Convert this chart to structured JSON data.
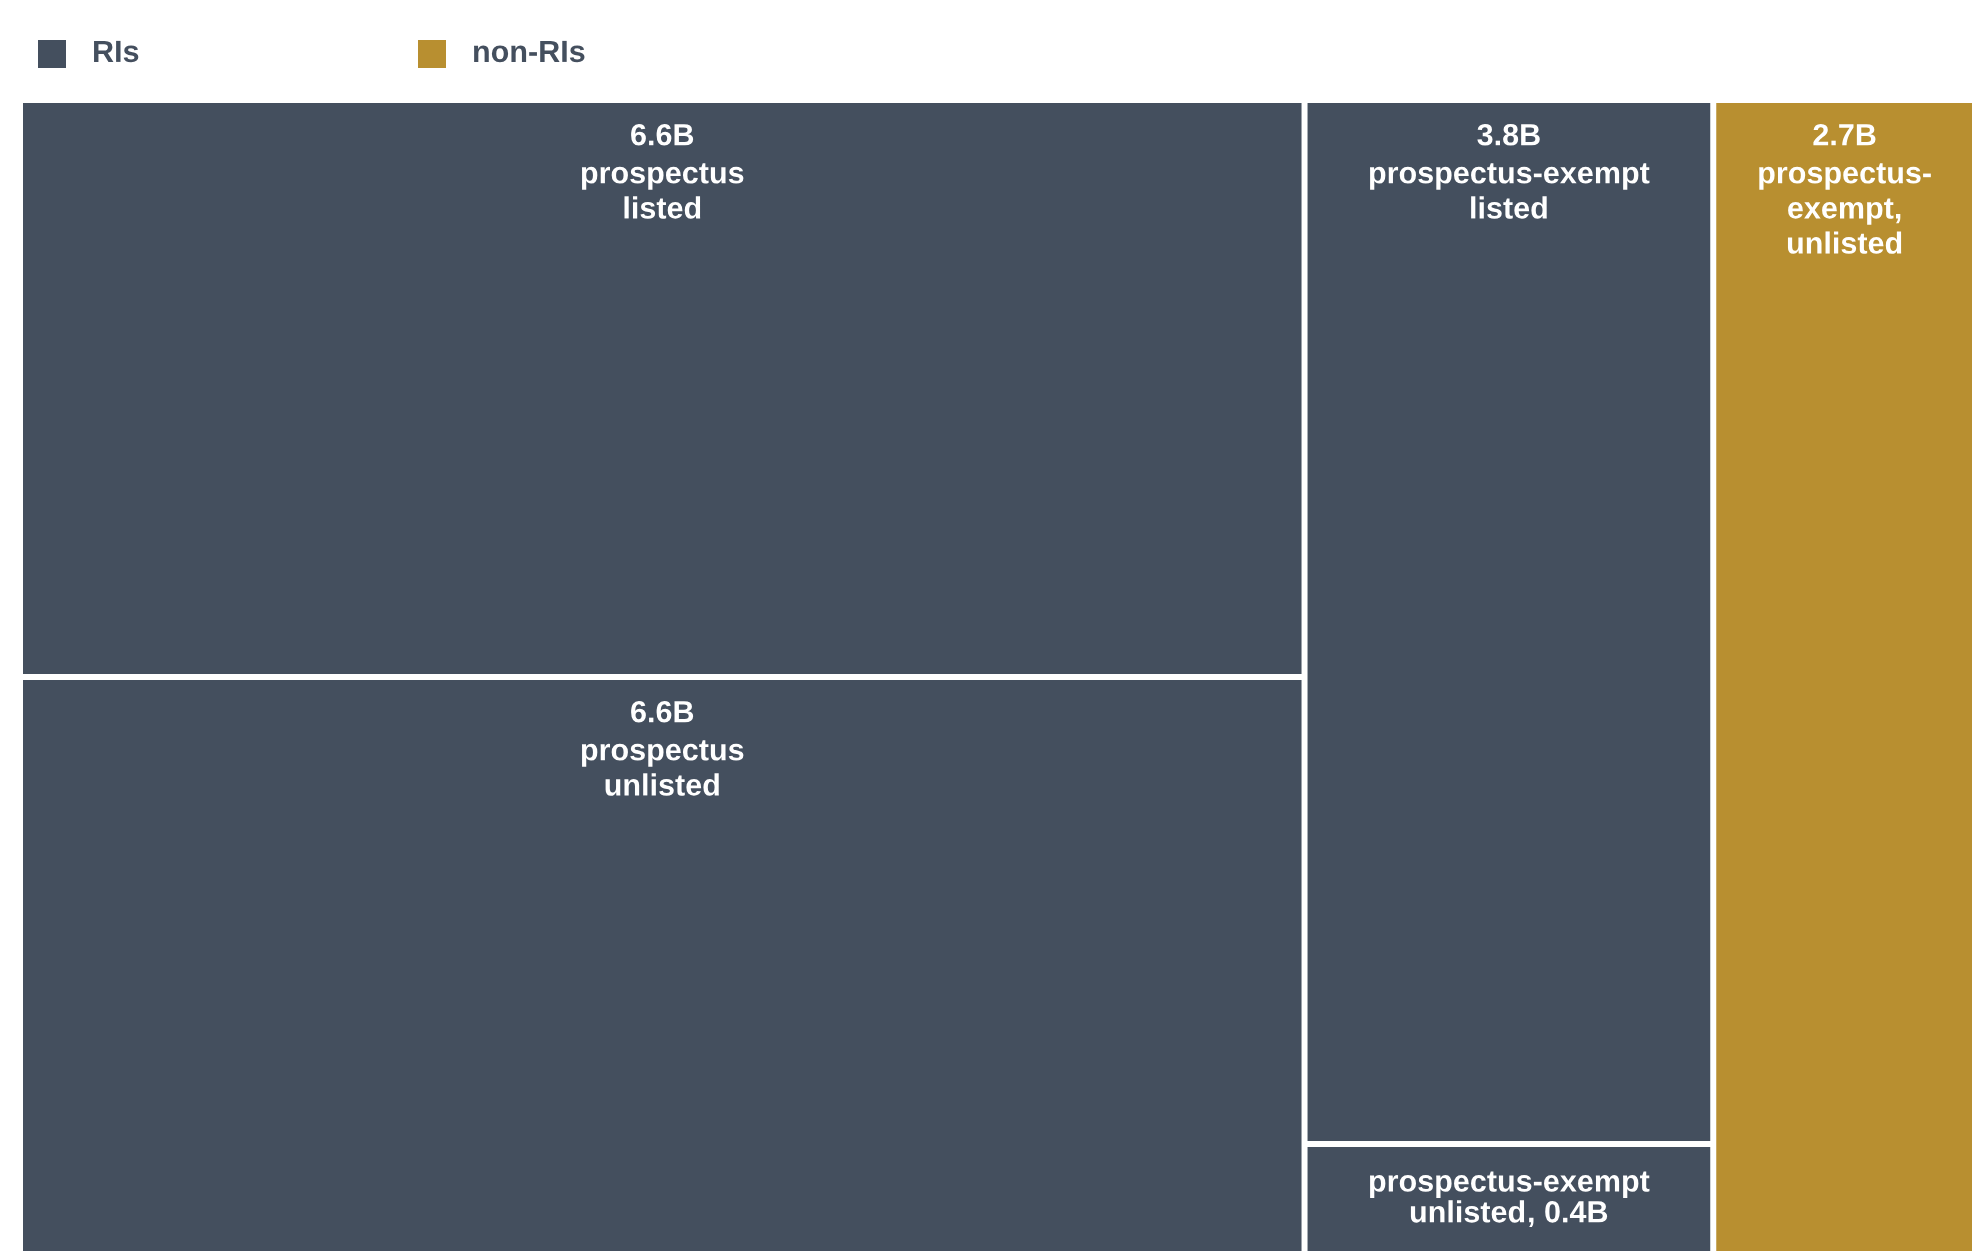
{
  "chart_data": {
    "type": "other",
    "categories": [
      "prospectus\nlisted",
      "prospectus\nunlisted",
      "prospectus-exempt\nlisted",
      "prospectus-exempt\nunlisted",
      "prospectus-\nexempt,\nunlisted"
    ],
    "series": [
      {
        "name": "RIs",
        "color": "#444f5e",
        "values": [
          6.6,
          6.6,
          3.8,
          0.4,
          null
        ],
        "value_labels": [
          "6.6B",
          "6.6B",
          "3.8B",
          ", 0.4B",
          null
        ]
      },
      {
        "name": "non-RIs",
        "color": "#b88f30",
        "values": [
          null,
          null,
          null,
          null,
          2.7
        ],
        "value_labels": [
          null,
          null,
          null,
          null,
          "2.7B"
        ]
      }
    ],
    "legend": "top left"
  }
}
